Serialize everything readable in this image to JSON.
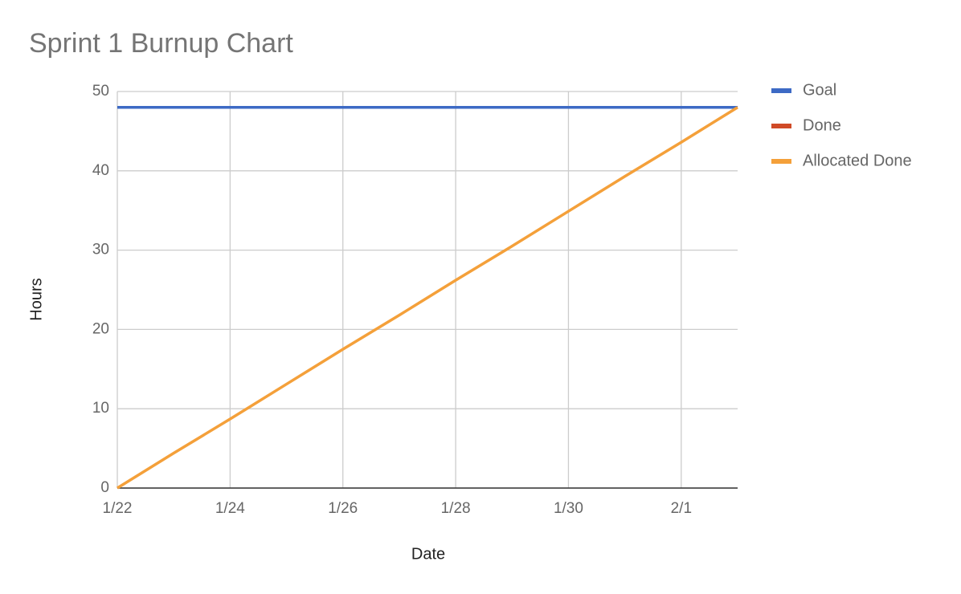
{
  "chart_data": {
    "type": "line",
    "title": "Sprint 1 Burnup Chart",
    "x_label": "Date",
    "y_label": "Hours",
    "categories": [
      "1/22",
      null,
      "1/24",
      null,
      "1/26",
      null,
      "1/28",
      null,
      "1/30",
      null,
      "2/1",
      null
    ],
    "series": [
      {
        "name": "Goal",
        "color": "#3d6ac5",
        "values": [
          48,
          48,
          48,
          48,
          48,
          48,
          48,
          48,
          48,
          48,
          48,
          48
        ]
      },
      {
        "name": "Done",
        "color": "#d04a27",
        "values": [
          null,
          null,
          null,
          null,
          null,
          null,
          null,
          null,
          null,
          null,
          null,
          null
        ]
      },
      {
        "name": "Allocated Done",
        "color": "#f4a03a",
        "values": [
          0,
          4.4,
          8.7,
          13.1,
          17.5,
          21.8,
          26.2,
          30.5,
          34.9,
          39.3,
          43.6,
          48
        ]
      }
    ],
    "ylim": [
      0,
      50
    ],
    "yticks": [
      0,
      10,
      20,
      30,
      40,
      50
    ],
    "grid": true,
    "legend": "right"
  }
}
